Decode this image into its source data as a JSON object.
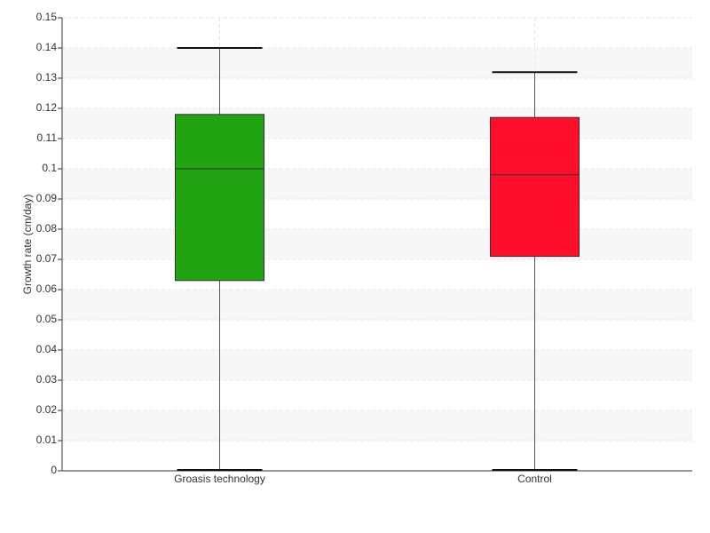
{
  "chart_data": {
    "type": "box",
    "y_label": "Growth rate (cm/day)",
    "categories": [
      "Groasis technology",
      "Control"
    ],
    "boxes": [
      {
        "min": 0,
        "q1": 0.063,
        "median": 0.1,
        "q3": 0.118,
        "max": 0.14,
        "color": "#22a312"
      },
      {
        "min": 0,
        "q1": 0.071,
        "median": 0.098,
        "q3": 0.117,
        "max": 0.132,
        "color": "#ff0d2b"
      }
    ],
    "ylim": [
      0,
      0.15
    ],
    "yticks": [
      0,
      0.01,
      0.02,
      0.03,
      0.04,
      0.05,
      0.06,
      0.07,
      0.08,
      0.09,
      0.1,
      0.11,
      0.12,
      0.13,
      0.14,
      0.15
    ],
    "grid": true
  }
}
